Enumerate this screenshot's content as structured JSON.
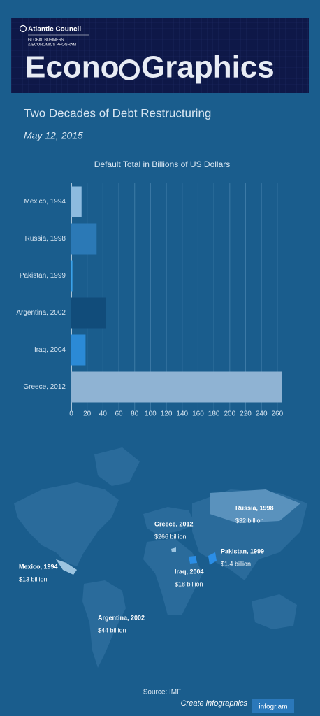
{
  "header": {
    "org": "Atlantic Council",
    "program_line1": "GLOBAL BUSINESS",
    "program_line2": "& ECONOMICS PROGRAM",
    "brand_left": "Econo",
    "brand_right": "Graphics"
  },
  "title": "Two Decades of Debt Restructuring",
  "date": "May 12, 2015",
  "chart_data": {
    "type": "bar",
    "orientation": "horizontal",
    "title": "Default Total in Billions of US Dollars",
    "categories": [
      "Mexico, 1994",
      "Russia, 1998",
      "Pakistan, 1999",
      "Argentina, 2002",
      "Iraq, 2004",
      "Greece, 2012"
    ],
    "values": [
      13,
      32,
      1.4,
      44,
      18,
      266
    ],
    "colors": [
      "#8dbbdf",
      "#2b79b6",
      "#3ba2ea",
      "#114c7a",
      "#2b8ad6",
      "#8fb3d3"
    ],
    "xlim": [
      0,
      276
    ],
    "xticks": [
      0,
      20,
      40,
      60,
      80,
      100,
      120,
      140,
      160,
      180,
      200,
      220,
      240,
      260
    ],
    "grid": true
  },
  "map": {
    "labels": [
      {
        "name": "Russia, 1998",
        "amount": "$32 billion"
      },
      {
        "name": "Greece, 2012",
        "amount": "$266 billion"
      },
      {
        "name": "Pakistan, 1999",
        "amount": "$1.4 billion"
      },
      {
        "name": "Mexico, 1994",
        "amount": "$13 billion"
      },
      {
        "name": "Iraq, 2004",
        "amount": "$18 billion"
      },
      {
        "name": "Argentina, 2002",
        "amount": "$44 billion"
      }
    ]
  },
  "source": "Source: IMF",
  "footer": {
    "cta": "Create infographics",
    "brand": "infogr.am"
  }
}
